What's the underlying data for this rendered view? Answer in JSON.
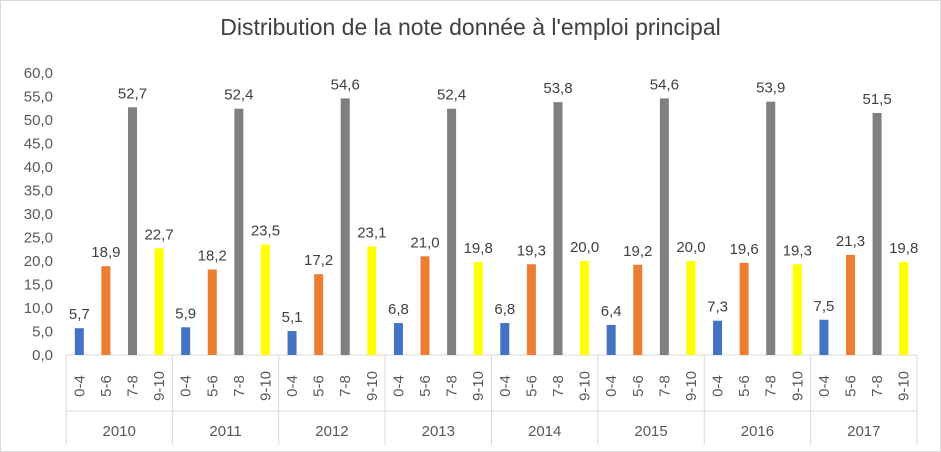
{
  "chart_data": {
    "type": "bar",
    "title": "Distribution de la note donnée à l'emploi principal",
    "xlabel": "",
    "ylabel": "",
    "ylim": [
      0,
      60
    ],
    "yticks": [
      "0,0",
      "5,0",
      "10,0",
      "15,0",
      "20,0",
      "25,0",
      "30,0",
      "35,0",
      "40,0",
      "45,0",
      "50,0",
      "55,0",
      "60,0"
    ],
    "grid": false,
    "legend": "none",
    "groups": [
      "2010",
      "2011",
      "2012",
      "2013",
      "2014",
      "2015",
      "2016",
      "2017"
    ],
    "categories": [
      "0-4",
      "5-6",
      "7-8",
      "9-10"
    ],
    "colors": [
      "#4472c4",
      "#ed7d31",
      "#7f7f7f",
      "#ffff00"
    ],
    "values": [
      [
        5.7,
        18.9,
        52.7,
        22.7
      ],
      [
        5.9,
        18.2,
        52.4,
        23.5
      ],
      [
        5.1,
        17.2,
        54.6,
        23.1
      ],
      [
        6.8,
        21.0,
        52.4,
        19.8
      ],
      [
        6.8,
        19.3,
        53.8,
        20.0
      ],
      [
        6.4,
        19.2,
        54.6,
        20.0
      ],
      [
        7.3,
        19.6,
        53.9,
        19.3
      ],
      [
        7.5,
        21.3,
        51.5,
        19.8
      ]
    ],
    "labels": [
      [
        "5,7",
        "18,9",
        "52,7",
        "22,7"
      ],
      [
        "5,9",
        "18,2",
        "52,4",
        "23,5"
      ],
      [
        "5,1",
        "17,2",
        "54,6",
        "23,1"
      ],
      [
        "6,8",
        "21,0",
        "52,4",
        "19,8"
      ],
      [
        "6,8",
        "19,3",
        "53,8",
        "20,0"
      ],
      [
        "6,4",
        "19,2",
        "54,6",
        "20,0"
      ],
      [
        "7,3",
        "19,6",
        "53,9",
        "19,3"
      ],
      [
        "7,5",
        "21,3",
        "51,5",
        "19,8"
      ]
    ]
  }
}
